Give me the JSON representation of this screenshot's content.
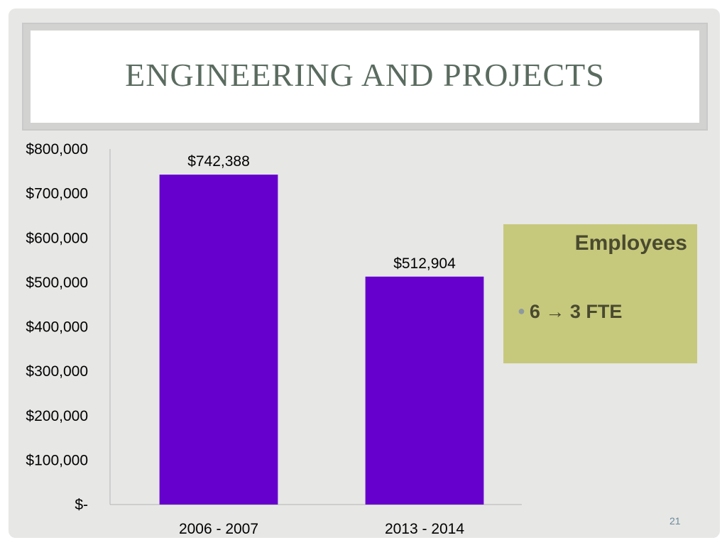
{
  "slide": {
    "title": "ENGINEERING AND PROJECTS",
    "page_number": "21",
    "callout": {
      "heading": "Employees",
      "bullet_text": "6 → 3 FTE"
    }
  },
  "chart_data": {
    "type": "bar",
    "categories": [
      "2006 - 2007",
      "2013 - 2014"
    ],
    "values": [
      742388,
      512904
    ],
    "data_labels": [
      "$742,388",
      "$512,904"
    ],
    "y_ticks": [
      0,
      100000,
      200000,
      300000,
      400000,
      500000,
      600000,
      700000,
      800000
    ],
    "y_tick_labels": [
      "$-",
      "$100,000",
      "$200,000",
      "$300,000",
      "$400,000",
      "$500,000",
      "$600,000",
      "$700,000",
      "$800,000"
    ],
    "ylim": [
      0,
      800000
    ],
    "bar_color": "#6600cc",
    "grid": false,
    "legend": "none"
  }
}
